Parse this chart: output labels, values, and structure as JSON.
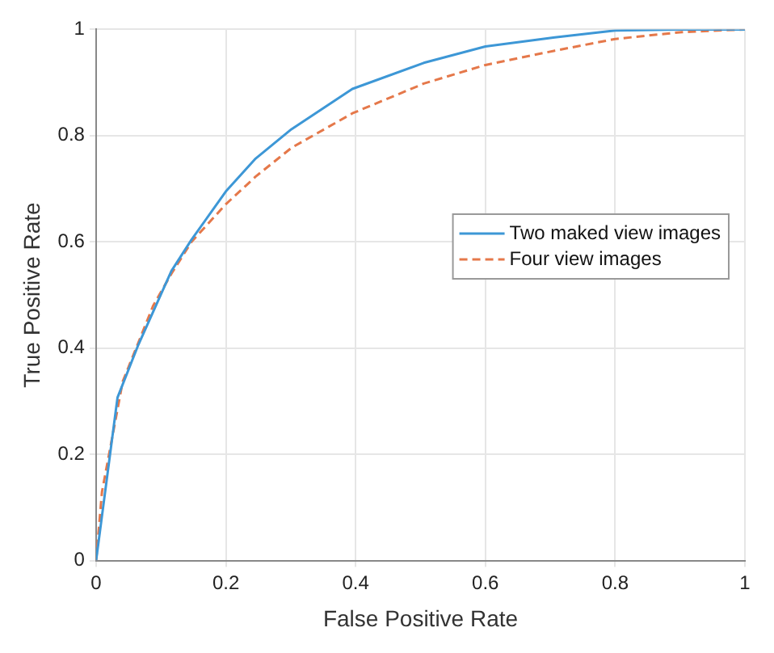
{
  "chart_data": {
    "type": "line",
    "xlabel": "False Positive Rate",
    "ylabel": "True Positive Rate",
    "xlim": [
      0,
      1
    ],
    "ylim": [
      0,
      1
    ],
    "xticks": [
      0,
      0.2,
      0.4,
      0.6,
      0.8,
      1
    ],
    "yticks": [
      0,
      0.2,
      0.4,
      0.6,
      0.8,
      1
    ],
    "grid": true,
    "legend": "right",
    "marker": "none",
    "series": [
      {
        "name": "Two maked view images",
        "color": "#3d97d6",
        "line_style": "solid",
        "x": [
          0,
          0.033,
          0.065,
          0.116,
          0.147,
          0.2,
          0.246,
          0.301,
          0.395,
          0.505,
          0.6,
          0.707,
          0.8,
          0.9,
          1
        ],
        "values": [
          0,
          0.307,
          0.406,
          0.545,
          0.604,
          0.695,
          0.757,
          0.812,
          0.888,
          0.937,
          0.968,
          0.985,
          0.998,
          1,
          1
        ]
      },
      {
        "name": "Four view images",
        "color": "#e5784a",
        "line_style": "dashed",
        "x": [
          0,
          0.009,
          0.041,
          0.088,
          0.116,
          0.147,
          0.2,
          0.246,
          0.301,
          0.395,
          0.505,
          0.6,
          0.707,
          0.8,
          0.903,
          1
        ],
        "values": [
          0,
          0.129,
          0.337,
          0.48,
          0.54,
          0.6,
          0.671,
          0.723,
          0.777,
          0.842,
          0.898,
          0.933,
          0.96,
          0.982,
          0.995,
          1
        ]
      }
    ]
  }
}
